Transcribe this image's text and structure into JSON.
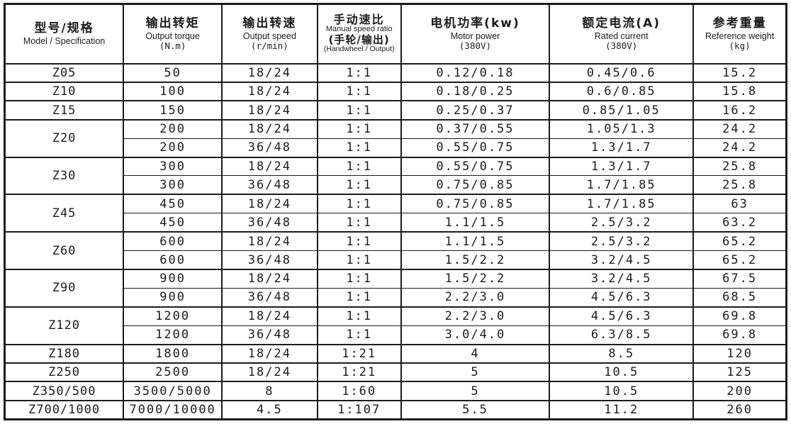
{
  "colors": {
    "ink": "#1b1b1b",
    "background": "#ffffff"
  },
  "table": {
    "columns": [
      {
        "zh": "型号/规格",
        "en": "Model / Specification"
      },
      {
        "zh": "输出转矩",
        "en": "Output torque",
        "unit": "(N.m)"
      },
      {
        "zh": "输出转速",
        "en": "Output speed",
        "unit": "(r/min)"
      },
      {
        "zh": "手动速比",
        "en": "Manual speed ratio",
        "zh2": "(手轮/输出)",
        "en2": "(Handwheel / Output)"
      },
      {
        "zh": "电机功率(kw)",
        "en": "Motor power",
        "unit": "(380V)"
      },
      {
        "zh": "额定电流(A)",
        "en": "Rated current",
        "unit": "(380V)"
      },
      {
        "zh": "参考重量",
        "en": "Reference weight",
        "unit": "(kg)"
      }
    ],
    "groups": [
      {
        "model": "Z05",
        "rows": [
          [
            "50",
            "18/24",
            "1:1",
            "0.12/0.18",
            "0.45/0.6",
            "15.2"
          ]
        ]
      },
      {
        "model": "Z10",
        "rows": [
          [
            "100",
            "18/24",
            "1:1",
            "0.18/0.25",
            "0.6/0.85",
            "15.8"
          ]
        ]
      },
      {
        "model": "Z15",
        "rows": [
          [
            "150",
            "18/24",
            "1:1",
            "0.25/0.37",
            "0.85/1.05",
            "16.2"
          ]
        ]
      },
      {
        "model": "Z20",
        "rows": [
          [
            "200",
            "18/24",
            "1:1",
            "0.37/0.55",
            "1.05/1.3",
            "24.2"
          ],
          [
            "200",
            "36/48",
            "1:1",
            "0.55/0.75",
            "1.3/1.7",
            "24.2"
          ]
        ]
      },
      {
        "model": "Z30",
        "rows": [
          [
            "300",
            "18/24",
            "1:1",
            "0.55/0.75",
            "1.3/1.7",
            "25.8"
          ],
          [
            "300",
            "36/48",
            "1:1",
            "0.75/0.85",
            "1.7/1.85",
            "25.8"
          ]
        ]
      },
      {
        "model": "Z45",
        "rows": [
          [
            "450",
            "18/24",
            "1:1",
            "0.75/0.85",
            "1.7/1.85",
            "63"
          ],
          [
            "450",
            "36/48",
            "1:1",
            "1.1/1.5",
            "2.5/3.2",
            "63.2"
          ]
        ]
      },
      {
        "model": "Z60",
        "rows": [
          [
            "600",
            "18/24",
            "1:1",
            "1.1/1.5",
            "2.5/3.2",
            "65.2"
          ],
          [
            "600",
            "36/48",
            "1:1",
            "1.5/2.2",
            "3.2/4.5",
            "65.2"
          ]
        ]
      },
      {
        "model": "Z90",
        "rows": [
          [
            "900",
            "18/24",
            "1:1",
            "1.5/2.2",
            "3.2/4.5",
            "67.5"
          ],
          [
            "900",
            "36/48",
            "1:1",
            "2.2/3.0",
            "4.5/6.3",
            "68.5"
          ]
        ]
      },
      {
        "model": "Z120",
        "rows": [
          [
            "1200",
            "18/24",
            "1:1",
            "2.2/3.0",
            "4.5/6.3",
            "69.8"
          ],
          [
            "1200",
            "36/48",
            "1:1",
            "3.0/4.0",
            "6.3/8.5",
            "69.8"
          ]
        ]
      },
      {
        "model": "Z180",
        "rows": [
          [
            "1800",
            "18/24",
            "1:21",
            "4",
            "8.5",
            "120"
          ]
        ]
      },
      {
        "model": "Z250",
        "rows": [
          [
            "2500",
            "18/24",
            "1:21",
            "5",
            "10.5",
            "125"
          ]
        ]
      },
      {
        "model": "Z350/500",
        "rows": [
          [
            "3500/5000",
            "8",
            "1:60",
            "5",
            "10.5",
            "200"
          ]
        ]
      },
      {
        "model": "Z700/1000",
        "rows": [
          [
            "7000/10000",
            "4.5",
            "1:107",
            "5.5",
            "11.2",
            "260"
          ]
        ]
      }
    ]
  }
}
